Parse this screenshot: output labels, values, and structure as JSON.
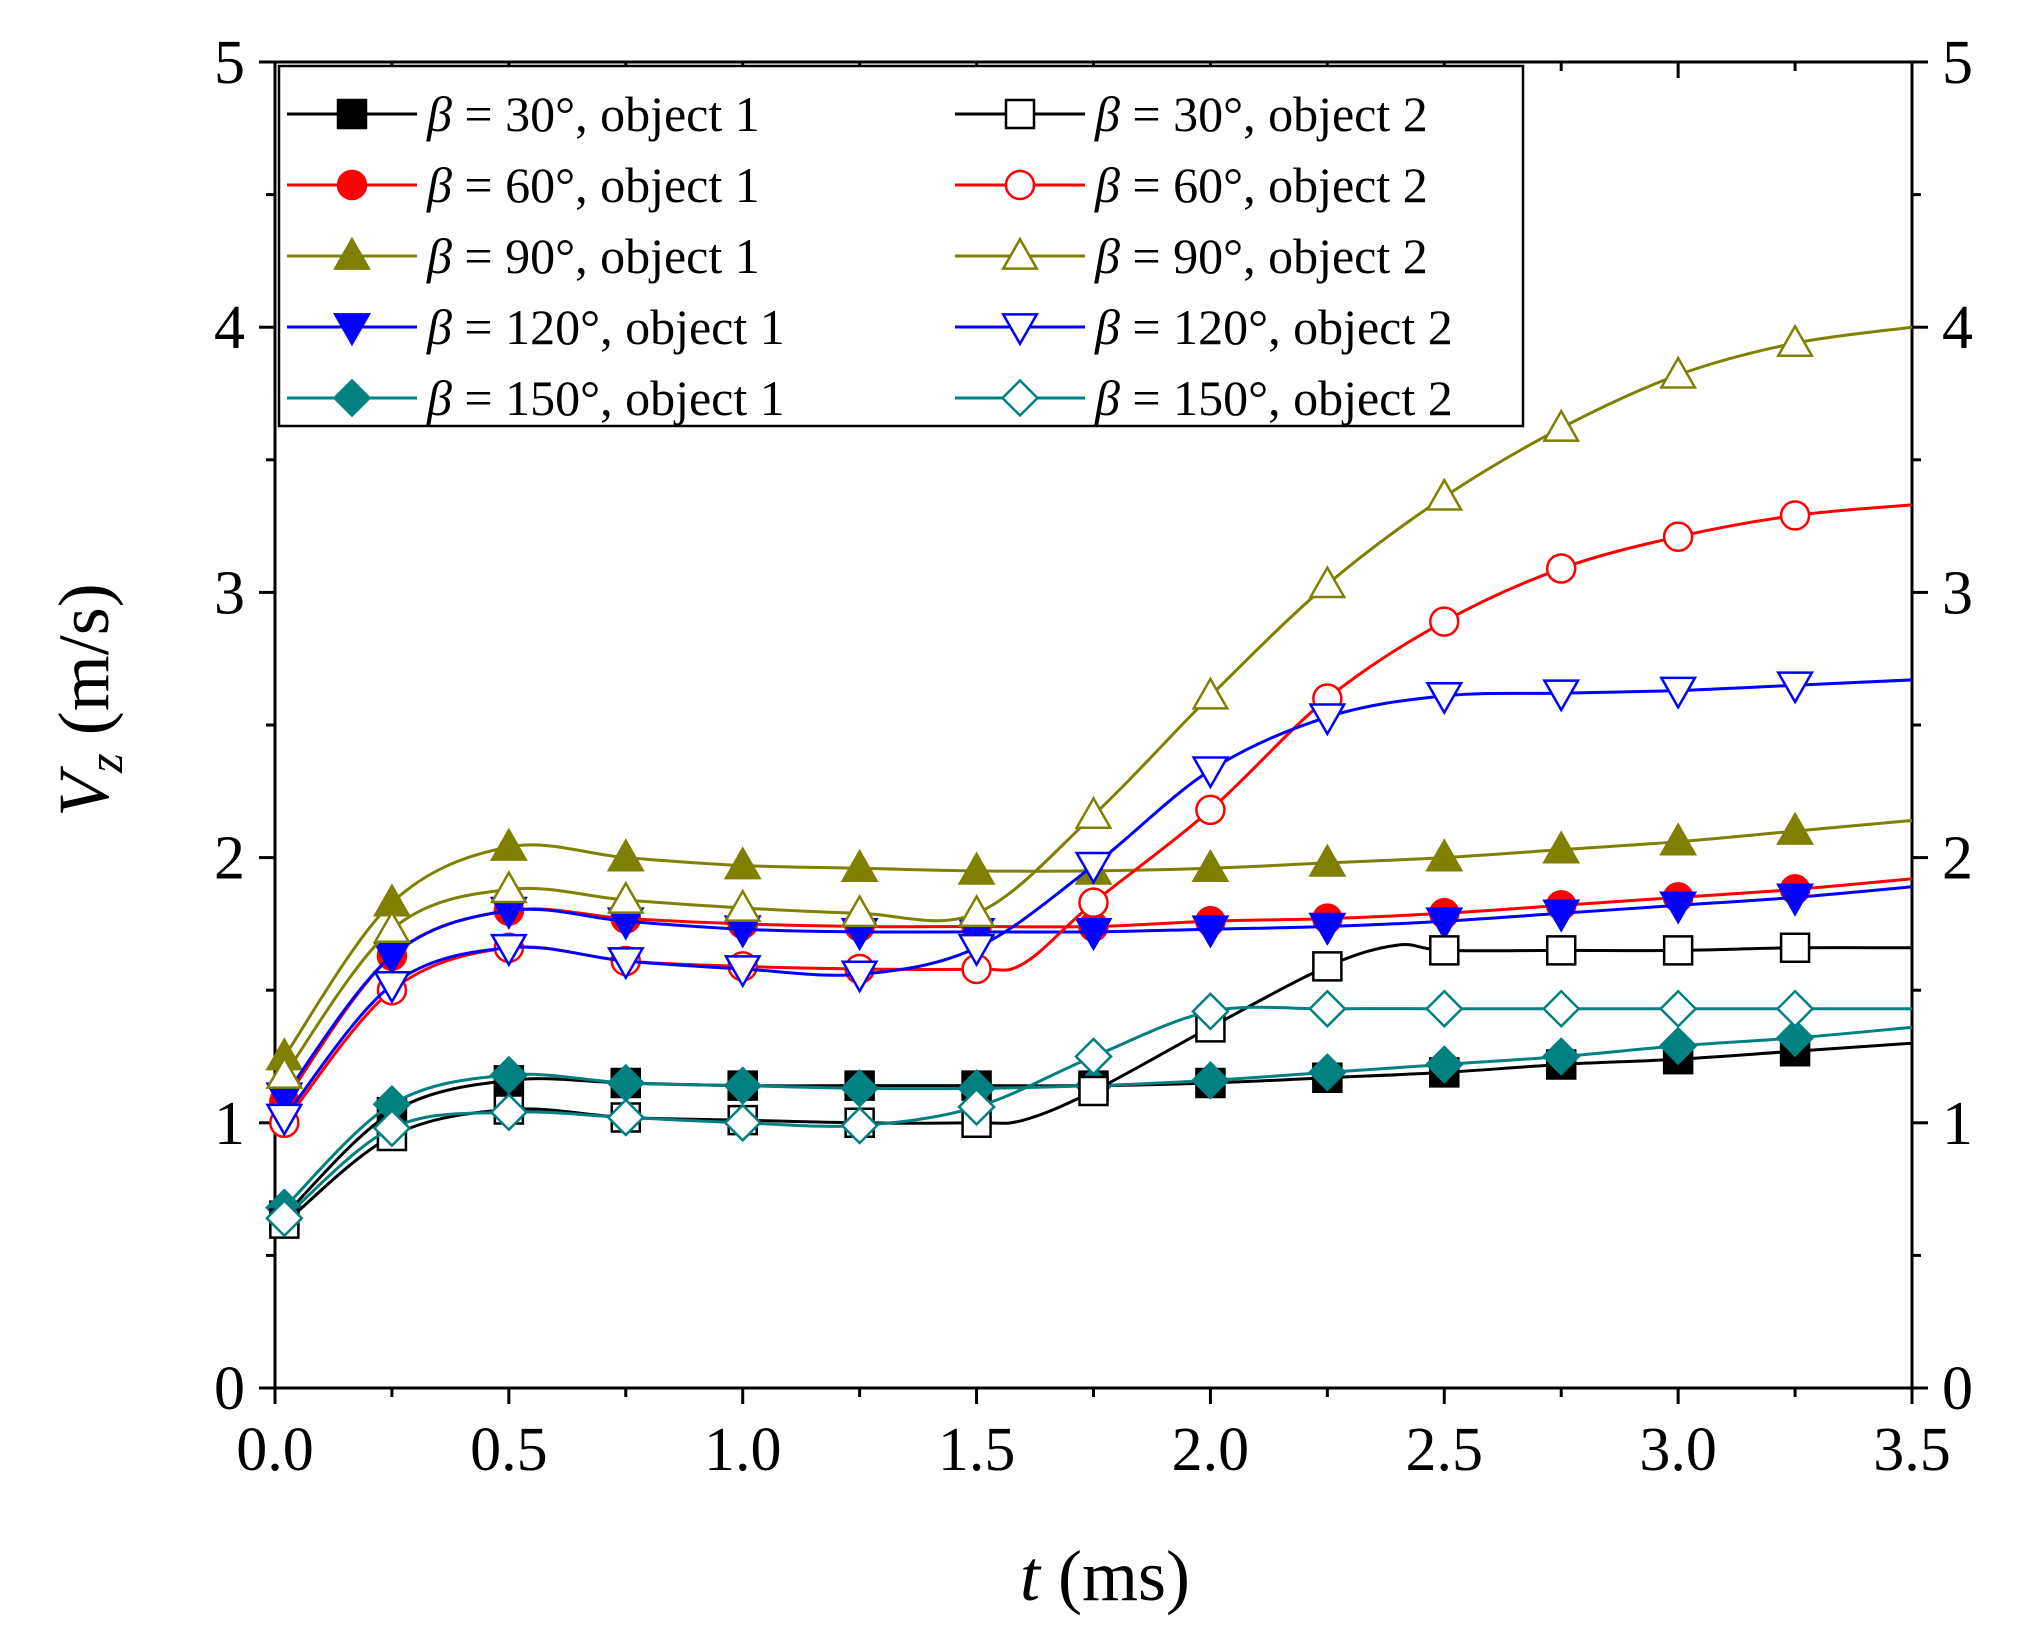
{
  "chart_data": {
    "type": "line",
    "title": "",
    "xlabel": "t (ms)",
    "ylabel": "V_z (m/s)",
    "xlabel_parts": {
      "symbol": "t",
      "unit": " (ms)"
    },
    "ylabel_parts": {
      "symbol": "V",
      "subscript": "z",
      "unit": " (m/s)"
    },
    "xlim": [
      0,
      3.5
    ],
    "ylim": [
      0,
      5
    ],
    "x_ticks": [
      0,
      0.5,
      1.0,
      1.5,
      2.0,
      2.5,
      3.0,
      3.5
    ],
    "x_tick_labels": [
      "0.0",
      "0.5",
      "1.0",
      "1.5",
      "2.0",
      "2.5",
      "3.0",
      "3.5"
    ],
    "y_ticks": [
      0,
      1,
      2,
      3,
      4,
      5
    ],
    "y_tick_labels": [
      "0",
      "1",
      "2",
      "3",
      "4",
      "5"
    ],
    "right_axis_mirror": true,
    "grid": false,
    "legend_position": "top-left",
    "colors": {
      "black": "#000000",
      "red": "#ff0000",
      "olive": "#808000",
      "blue": "#0000ff",
      "teal": "#008080"
    },
    "series": [
      {
        "name": "β = 30°,   object 1",
        "beta": "β",
        "rest": " = 30°,   object 1",
        "color": "#000000",
        "marker": "square",
        "filled": true,
        "points": [
          [
            0.02,
            0.65
          ],
          [
            0.25,
            1.04
          ],
          [
            0.5,
            1.16
          ],
          [
            0.75,
            1.15
          ],
          [
            1.0,
            1.14
          ],
          [
            1.25,
            1.14
          ],
          [
            1.5,
            1.14
          ],
          [
            1.75,
            1.14
          ],
          [
            2.0,
            1.15
          ],
          [
            2.25,
            1.17
          ],
          [
            2.5,
            1.19
          ],
          [
            2.75,
            1.22
          ],
          [
            3.0,
            1.24
          ],
          [
            3.25,
            1.27
          ],
          [
            3.5,
            1.3
          ]
        ]
      },
      {
        "name": "β = 60°,   object 1",
        "beta": "β",
        "rest": " = 60°,   object 1",
        "color": "#ff0000",
        "marker": "circle",
        "filled": true,
        "points": [
          [
            0.02,
            1.08
          ],
          [
            0.25,
            1.63
          ],
          [
            0.5,
            1.8
          ],
          [
            0.75,
            1.77
          ],
          [
            1.0,
            1.75
          ],
          [
            1.25,
            1.74
          ],
          [
            1.5,
            1.74
          ],
          [
            1.75,
            1.74
          ],
          [
            2.0,
            1.76
          ],
          [
            2.25,
            1.77
          ],
          [
            2.5,
            1.79
          ],
          [
            2.75,
            1.82
          ],
          [
            3.0,
            1.85
          ],
          [
            3.25,
            1.88
          ],
          [
            3.5,
            1.92
          ]
        ]
      },
      {
        "name": "β = 90°,   object 1",
        "beta": "β",
        "rest": " = 90°,   object 1",
        "color": "#808000",
        "marker": "triangle-up",
        "filled": true,
        "points": [
          [
            0.02,
            1.25
          ],
          [
            0.25,
            1.83
          ],
          [
            0.5,
            2.04
          ],
          [
            0.75,
            2.0
          ],
          [
            1.0,
            1.97
          ],
          [
            1.25,
            1.96
          ],
          [
            1.5,
            1.95
          ],
          [
            1.75,
            1.95
          ],
          [
            2.0,
            1.96
          ],
          [
            2.25,
            1.98
          ],
          [
            2.5,
            2.0
          ],
          [
            2.75,
            2.03
          ],
          [
            3.0,
            2.06
          ],
          [
            3.25,
            2.1
          ],
          [
            3.5,
            2.14
          ]
        ]
      },
      {
        "name": "β = 120°, object 1",
        "beta": "β",
        "rest": " = 120°, object 1",
        "color": "#0000ff",
        "marker": "triangle-down",
        "filled": true,
        "points": [
          [
            0.02,
            1.1
          ],
          [
            0.25,
            1.63
          ],
          [
            0.5,
            1.8
          ],
          [
            0.75,
            1.76
          ],
          [
            1.0,
            1.73
          ],
          [
            1.25,
            1.72
          ],
          [
            1.5,
            1.72
          ],
          [
            1.75,
            1.72
          ],
          [
            2.0,
            1.73
          ],
          [
            2.25,
            1.74
          ],
          [
            2.5,
            1.76
          ],
          [
            2.75,
            1.79
          ],
          [
            3.0,
            1.82
          ],
          [
            3.25,
            1.85
          ],
          [
            3.5,
            1.89
          ]
        ]
      },
      {
        "name": "β = 150°, object 1",
        "beta": "β",
        "rest": " = 150°, object 1",
        "color": "#008080",
        "marker": "diamond",
        "filled": true,
        "points": [
          [
            0.02,
            0.68
          ],
          [
            0.25,
            1.07
          ],
          [
            0.5,
            1.18
          ],
          [
            0.75,
            1.15
          ],
          [
            1.0,
            1.14
          ],
          [
            1.25,
            1.13
          ],
          [
            1.5,
            1.13
          ],
          [
            1.75,
            1.14
          ],
          [
            2.0,
            1.16
          ],
          [
            2.25,
            1.19
          ],
          [
            2.5,
            1.22
          ],
          [
            2.75,
            1.25
          ],
          [
            3.0,
            1.29
          ],
          [
            3.25,
            1.32
          ],
          [
            3.5,
            1.36
          ]
        ]
      },
      {
        "name": "β = 30°,   object 2",
        "beta": "β",
        "rest": " = 30°,   object 2",
        "color": "#000000",
        "marker": "square",
        "filled": false,
        "points": [
          [
            0.02,
            0.62
          ],
          [
            0.25,
            0.95
          ],
          [
            0.5,
            1.05
          ],
          [
            0.75,
            1.02
          ],
          [
            1.0,
            1.01
          ],
          [
            1.25,
            1.0
          ],
          [
            1.5,
            1.0
          ],
          [
            1.6,
            1.01
          ],
          [
            1.75,
            1.12
          ],
          [
            2.0,
            1.36
          ],
          [
            2.25,
            1.59
          ],
          [
            2.4,
            1.67
          ],
          [
            2.5,
            1.65
          ],
          [
            2.75,
            1.65
          ],
          [
            3.0,
            1.65
          ],
          [
            3.25,
            1.66
          ],
          [
            3.5,
            1.66
          ]
        ]
      },
      {
        "name": "β = 60°,   object 2",
        "beta": "β",
        "rest": " = 60°,   object 2",
        "color": "#ff0000",
        "marker": "circle",
        "filled": false,
        "points": [
          [
            0.02,
            1.0
          ],
          [
            0.25,
            1.5
          ],
          [
            0.5,
            1.66
          ],
          [
            0.75,
            1.61
          ],
          [
            1.0,
            1.59
          ],
          [
            1.25,
            1.58
          ],
          [
            1.5,
            1.58
          ],
          [
            1.6,
            1.6
          ],
          [
            1.75,
            1.83
          ],
          [
            2.0,
            2.18
          ],
          [
            2.25,
            2.6
          ],
          [
            2.5,
            2.89
          ],
          [
            2.75,
            3.09
          ],
          [
            3.0,
            3.21
          ],
          [
            3.25,
            3.29
          ],
          [
            3.5,
            3.33
          ]
        ]
      },
      {
        "name": "β = 90°,   object 2",
        "beta": "β",
        "rest": " = 90°,   object 2",
        "color": "#808000",
        "marker": "triangle-up",
        "filled": false,
        "points": [
          [
            0.02,
            1.18
          ],
          [
            0.25,
            1.73
          ],
          [
            0.5,
            1.88
          ],
          [
            0.75,
            1.84
          ],
          [
            1.0,
            1.81
          ],
          [
            1.25,
            1.79
          ],
          [
            1.5,
            1.79
          ],
          [
            1.75,
            2.16
          ],
          [
            2.0,
            2.61
          ],
          [
            2.25,
            3.03
          ],
          [
            2.5,
            3.36
          ],
          [
            2.75,
            3.62
          ],
          [
            3.0,
            3.82
          ],
          [
            3.25,
            3.94
          ],
          [
            3.5,
            4.0
          ]
        ]
      },
      {
        "name": "β = 120°, object 2",
        "beta": "β",
        "rest": " = 120°, object 2",
        "color": "#0000ff",
        "marker": "triangle-down",
        "filled": false,
        "points": [
          [
            0.02,
            1.02
          ],
          [
            0.25,
            1.52
          ],
          [
            0.5,
            1.66
          ],
          [
            0.75,
            1.61
          ],
          [
            1.0,
            1.58
          ],
          [
            1.25,
            1.56
          ],
          [
            1.5,
            1.66
          ],
          [
            1.75,
            1.97
          ],
          [
            2.0,
            2.33
          ],
          [
            2.25,
            2.53
          ],
          [
            2.5,
            2.61
          ],
          [
            2.75,
            2.62
          ],
          [
            3.0,
            2.63
          ],
          [
            3.25,
            2.65
          ],
          [
            3.5,
            2.67
          ]
        ]
      },
      {
        "name": "β = 150°, object 2",
        "beta": "β",
        "rest": " = 150°, object 2",
        "color": "#008080",
        "marker": "diamond",
        "filled": false,
        "points": [
          [
            0.02,
            0.64
          ],
          [
            0.25,
            0.98
          ],
          [
            0.5,
            1.04
          ],
          [
            0.75,
            1.02
          ],
          [
            1.0,
            1.0
          ],
          [
            1.25,
            0.99
          ],
          [
            1.5,
            1.06
          ],
          [
            1.75,
            1.25
          ],
          [
            2.0,
            1.42
          ],
          [
            2.25,
            1.43
          ],
          [
            2.5,
            1.43
          ],
          [
            2.75,
            1.43
          ],
          [
            3.0,
            1.43
          ],
          [
            3.25,
            1.43
          ],
          [
            3.5,
            1.43
          ]
        ]
      }
    ]
  }
}
